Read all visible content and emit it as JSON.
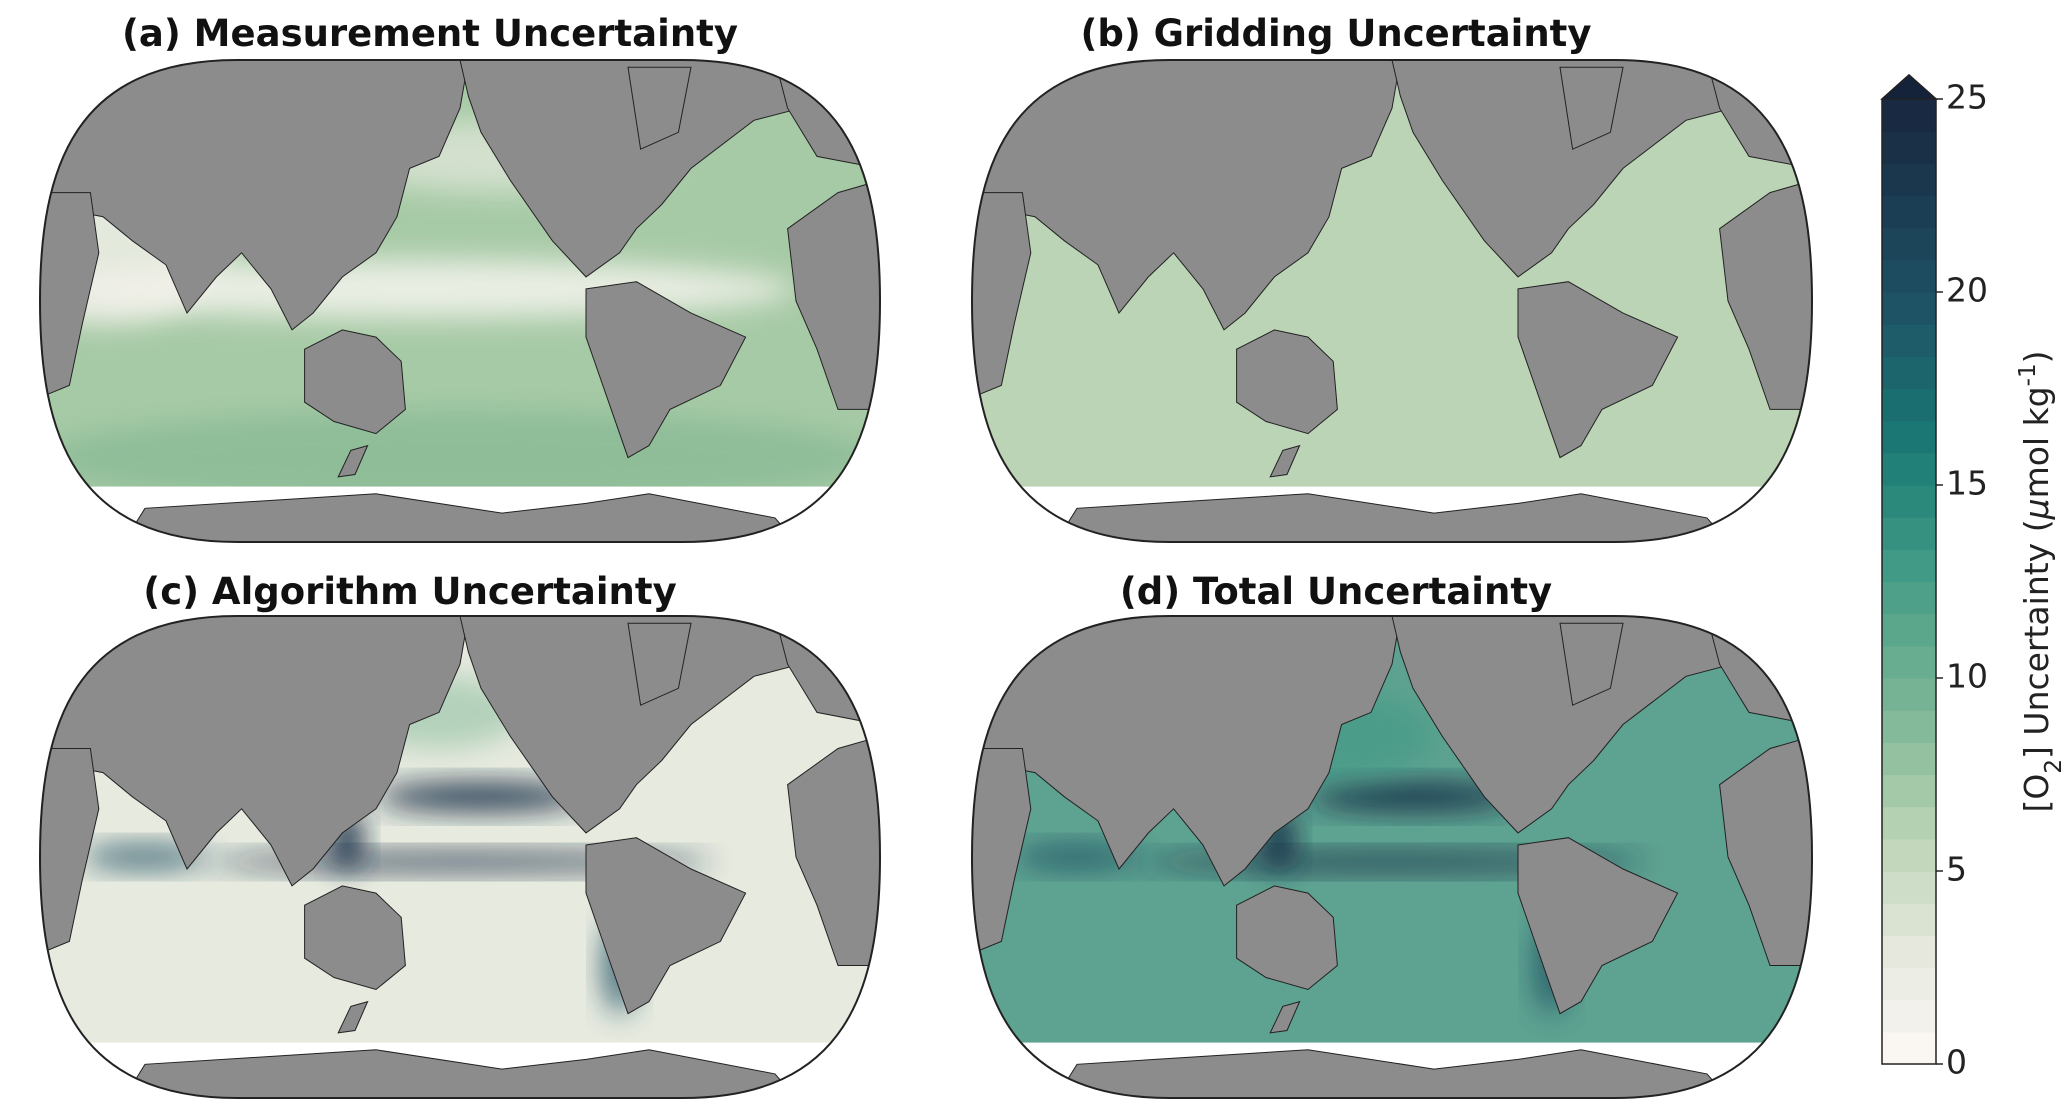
{
  "panels": [
    {
      "title": "(a) Measurement Uncertainty"
    },
    {
      "title": "(b) Gridding Uncertainty"
    },
    {
      "title": "(c) Algorithm Uncertainty"
    },
    {
      "title": "(d) Total Uncertainty"
    }
  ],
  "colorbar": {
    "lim": [
      0,
      25
    ],
    "ticks": [
      0,
      5,
      10,
      15,
      20,
      25
    ],
    "label_parts": [
      "[O",
      "2",
      "] Uncertainty (",
      "μ",
      "mol kg",
      "-1",
      ")"
    ]
  }
}
